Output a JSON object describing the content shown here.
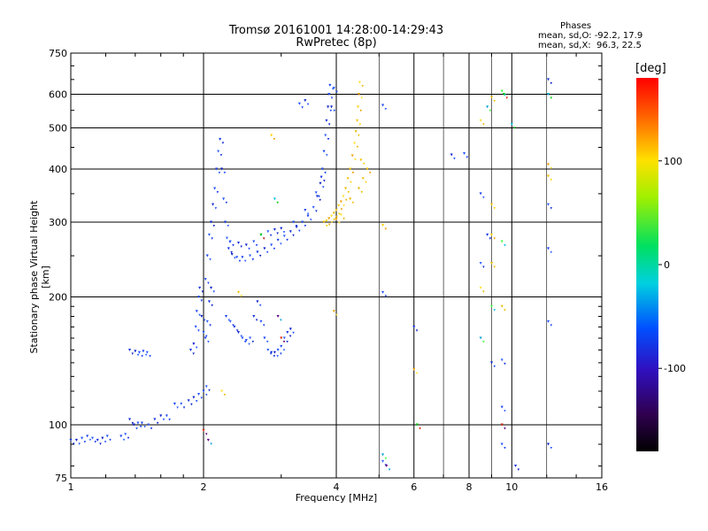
{
  "header": {
    "title_line1": "Tromsø 20161001 14:28:00-14:29:43",
    "title_line2": "RwPretec (8p)"
  },
  "phase_box": {
    "heading": "Phases",
    "o_line": "mean, sd,O: -92.2, 17.9",
    "x_line": "mean, sd,X:  96.3, 22.5"
  },
  "colorbar": {
    "unit": "[deg]",
    "ticks": [
      {
        "value": 100,
        "label": "100"
      },
      {
        "value": 0,
        "label": "0"
      },
      {
        "value": -100,
        "label": "-100"
      }
    ],
    "range": [
      -180,
      180
    ]
  },
  "chart_data": {
    "type": "scatter",
    "title": "Tromsø 20161001 14:28:00-14:29:43",
    "subtitle": "RwPretec (8p)",
    "xlabel": "Frequency [MHz]",
    "ylabel": "Stationary phase Virtual Height [km]",
    "x_scale": "log",
    "y_scale": "log",
    "xlim": [
      1,
      16
    ],
    "ylim": [
      75,
      750
    ],
    "x_ticks": [
      1,
      2,
      4,
      6,
      8,
      10,
      16
    ],
    "y_ticks": [
      75,
      100,
      200,
      300,
      400,
      500,
      600,
      750
    ],
    "x_gridlines": [
      2,
      4,
      6,
      8,
      10
    ],
    "y_gridlines": [
      100,
      200,
      300,
      400,
      500,
      600
    ],
    "legend": "none",
    "series": [
      {
        "color_group": "O-trace (blue, ~-100 deg)",
        "points": [
          [
            1.0,
            92
          ],
          [
            1.03,
            92
          ],
          [
            1.06,
            93
          ],
          [
            1.09,
            94
          ],
          [
            1.12,
            93
          ],
          [
            1.15,
            92
          ],
          [
            1.18,
            93
          ],
          [
            1.21,
            94
          ],
          [
            1.3,
            94
          ],
          [
            1.33,
            95
          ],
          [
            1.36,
            103
          ],
          [
            1.39,
            100
          ],
          [
            1.42,
            101
          ],
          [
            1.45,
            101
          ],
          [
            1.5,
            100
          ],
          [
            1.55,
            103
          ],
          [
            1.6,
            105
          ],
          [
            1.65,
            105
          ],
          [
            1.72,
            112
          ],
          [
            1.78,
            112
          ],
          [
            1.85,
            114
          ],
          [
            1.9,
            116
          ],
          [
            1.95,
            118
          ],
          [
            2.0,
            120
          ],
          [
            2.03,
            123
          ],
          [
            1.36,
            150
          ],
          [
            1.4,
            149
          ],
          [
            1.43,
            148
          ],
          [
            1.46,
            149
          ],
          [
            1.49,
            148
          ],
          [
            1.87,
            150
          ],
          [
            1.9,
            155
          ],
          [
            1.92,
            170
          ],
          [
            1.93,
            185
          ],
          [
            1.95,
            200
          ],
          [
            1.96,
            210
          ],
          [
            1.98,
            180
          ],
          [
            2.0,
            165
          ],
          [
            2.02,
            160
          ],
          [
            2.04,
            175
          ],
          [
            2.06,
            195
          ],
          [
            2.08,
            210
          ],
          [
            2.02,
            220
          ],
          [
            2.04,
            250
          ],
          [
            2.06,
            280
          ],
          [
            2.08,
            300
          ],
          [
            2.1,
            330
          ],
          [
            2.12,
            360
          ],
          [
            2.14,
            400
          ],
          [
            2.16,
            440
          ],
          [
            2.18,
            470
          ],
          [
            2.2,
            400
          ],
          [
            2.22,
            340
          ],
          [
            2.24,
            300
          ],
          [
            2.26,
            275
          ],
          [
            2.28,
            260
          ],
          [
            2.32,
            252
          ],
          [
            2.38,
            248
          ],
          [
            2.45,
            248
          ],
          [
            2.55,
            250
          ],
          [
            2.65,
            255
          ],
          [
            2.75,
            260
          ],
          [
            2.85,
            265
          ],
          [
            2.95,
            272
          ],
          [
            3.05,
            278
          ],
          [
            3.15,
            285
          ],
          [
            3.25,
            292
          ],
          [
            3.35,
            300
          ],
          [
            3.45,
            310
          ],
          [
            3.55,
            325
          ],
          [
            3.62,
            345
          ],
          [
            3.68,
            370
          ],
          [
            3.72,
            400
          ],
          [
            3.75,
            440
          ],
          [
            3.78,
            480
          ],
          [
            3.8,
            520
          ],
          [
            3.83,
            560
          ],
          [
            3.85,
            600
          ],
          [
            3.87,
            630
          ],
          [
            2.3,
            270
          ],
          [
            2.4,
            268
          ],
          [
            2.5,
            265
          ],
          [
            2.6,
            270
          ],
          [
            2.7,
            280
          ],
          [
            2.8,
            285
          ],
          [
            2.9,
            288
          ],
          [
            3.0,
            290
          ],
          [
            3.2,
            300
          ],
          [
            3.4,
            320
          ],
          [
            3.6,
            352
          ],
          [
            3.7,
            383
          ],
          [
            3.9,
            560
          ],
          [
            3.95,
            620
          ],
          [
            2.25,
            180
          ],
          [
            2.3,
            175
          ],
          [
            2.35,
            170
          ],
          [
            2.4,
            165
          ],
          [
            2.45,
            160
          ],
          [
            2.5,
            158
          ],
          [
            2.55,
            160
          ],
          [
            2.6,
            180
          ],
          [
            2.65,
            195
          ],
          [
            2.7,
            175
          ],
          [
            2.75,
            160
          ],
          [
            2.8,
            150
          ],
          [
            2.85,
            148
          ],
          [
            2.9,
            148
          ],
          [
            2.95,
            150
          ],
          [
            3.0,
            153
          ],
          [
            3.05,
            160
          ],
          [
            3.1,
            165
          ],
          [
            3.15,
            168
          ],
          [
            5.1,
            205
          ],
          [
            5.1,
            565
          ],
          [
            5.1,
            82
          ],
          [
            6.0,
            170
          ],
          [
            7.3,
            432
          ],
          [
            7.8,
            435
          ],
          [
            8.5,
            350
          ],
          [
            8.5,
            240
          ],
          [
            8.8,
            280
          ],
          [
            9.0,
            140
          ],
          [
            9.5,
            90
          ],
          [
            9.5,
            110
          ],
          [
            9.5,
            142
          ],
          [
            10.2,
            80
          ],
          [
            12.1,
            90
          ],
          [
            12.1,
            175
          ],
          [
            12.1,
            260
          ],
          [
            12.1,
            330
          ],
          [
            12.1,
            650
          ],
          [
            3.4,
            580
          ],
          [
            3.3,
            570
          ]
        ]
      },
      {
        "color_group": "X-trace (yellow/orange, ~+100 deg)",
        "points": [
          [
            3.75,
            300
          ],
          [
            3.8,
            302
          ],
          [
            3.85,
            306
          ],
          [
            3.9,
            310
          ],
          [
            3.95,
            315
          ],
          [
            4.0,
            320
          ],
          [
            4.05,
            328
          ],
          [
            4.1,
            335
          ],
          [
            4.15,
            345
          ],
          [
            4.2,
            360
          ],
          [
            4.25,
            380
          ],
          [
            4.3,
            400
          ],
          [
            4.35,
            430
          ],
          [
            4.4,
            460
          ],
          [
            4.43,
            490
          ],
          [
            4.46,
            520
          ],
          [
            4.48,
            560
          ],
          [
            4.5,
            600
          ],
          [
            4.52,
            640
          ],
          [
            4.5,
            360
          ],
          [
            4.6,
            380
          ],
          [
            4.7,
            400
          ],
          [
            4.0,
            305
          ],
          [
            4.1,
            312
          ],
          [
            4.3,
            340
          ],
          [
            4.55,
            420
          ],
          [
            2.85,
            480
          ],
          [
            3.95,
            185
          ],
          [
            2.2,
            120
          ],
          [
            9.0,
            590
          ],
          [
            9.0,
            330
          ],
          [
            9.0,
            280
          ],
          [
            12.1,
            410
          ],
          [
            8.5,
            520
          ],
          [
            9.5,
            190
          ],
          [
            2.4,
            205
          ],
          [
            5.1,
            295
          ],
          [
            6.0,
            135
          ],
          [
            8.5,
            210
          ],
          [
            9.0,
            240
          ],
          [
            12.1,
            385
          ]
        ]
      },
      {
        "color_group": "other phases (cyan/green/red/purple)",
        "points": [
          [
            2.9,
            340
          ],
          [
            2.7,
            280
          ],
          [
            3.0,
            160
          ],
          [
            2.95,
            180
          ],
          [
            8.8,
            560
          ],
          [
            9.5,
            610
          ],
          [
            10.0,
            510
          ],
          [
            9.6,
            600
          ],
          [
            9.5,
            100
          ],
          [
            5.2,
            80
          ],
          [
            5.1,
            85
          ],
          [
            9.5,
            270
          ],
          [
            12.1,
            600
          ],
          [
            6.1,
            100
          ],
          [
            2.0,
            97
          ],
          [
            2.05,
            92
          ],
          [
            8.5,
            160
          ],
          [
            9.0,
            190
          ]
        ]
      }
    ]
  }
}
